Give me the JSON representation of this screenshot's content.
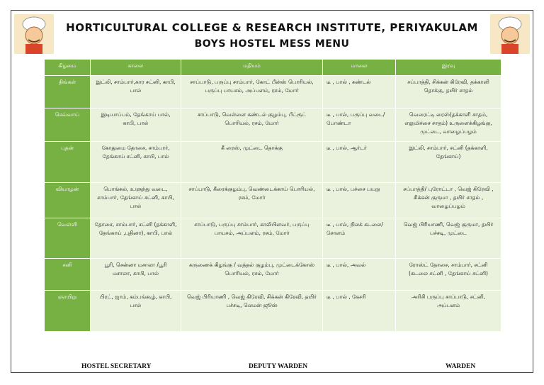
{
  "header": {
    "title": "HORTICULTURAL COLLEGE & RESEARCH INSTITUTE, PERIYAKULAM",
    "subtitle": "BOYS HOSTEL MESS MENU"
  },
  "table": {
    "columns": [
      "கிழமை",
      "காலை",
      "மதியம்",
      "மாலை",
      "இரவு"
    ],
    "rows": [
      [
        "திங்கள்",
        "இட்லி, சாம்பார்,கார சட்னி, காபி, பால்",
        "சாப்பாடு, பருப்பு சாம்பார், கோட் பீன்ஸ் பொரியல், பருப்பு பாயசம், அப்பளம், ரசம், மோர்",
        "டீ , பால் , சுண்டல்",
        "சப்பாத்தி, சிக்கன் கிரேவி, தக்காளி தொக்கு, தயிர் சாதம்"
      ],
      [
        "செவ்வாய்",
        "இடியாப்பம், தேங்காய் பால், காபி, பால்",
        "சாப்பாடு, வெள்ளை சுண்டல் குழம்பு, பீட்ரூட் பொரியல், ரசம், மோர்",
        "டீ , பால், பருப்பு வடை/போண்டா",
        "வெரைட்டி ரைஸ்(தக்காளி சாதம், எலுமிச்சை சாதம்) உருளைக்கிழங்கு, முட்டை, வாழைப்பழம்"
      ],
      [
        "புதன்",
        "கோதுமை தோசை, சாம்பார், தேங்காய் சட்னி, காபி, பால்",
        "கீ ரைஸ், முட்டை தொக்கு",
        "டீ , பால், ஆர்டர்",
        "இட்லி, சாம்பார், சட்னி (தக்காளி, தேங்காய்)"
      ],
      [
        "வியாழன்",
        "பொங்கல், உளுந்து வடை, சாம்பார், தேங்காய் சட்னி, காபி, பால்",
        "சாப்பாடு, கீரைக்குழம்பு, வெண்டைக்காய் பொரியல், ரசம், மோர்",
        "டீ , பால், பச்சை பயறு",
        "சப்பாத்தி/ புரோட்டா , வெஜ் கிரேவி , சிக்கன் குருமா , தயிர் சாதம் , வாழைப்பழம்"
      ],
      [
        "வெள்ளி",
        "தோசை, சாம்பார், சட்னி (தக்காளி, தேங்காய் ,புதினா), காபி, பால்",
        "சாப்பாடு, பருப்பு சாம்பார், காலிபிளவர், பருப்பு பாயசம், அப்பளம், ரசம், மோர்",
        "டீ , பால், நிலக் கடலை/ சோளம்",
        "வெஜ் பிரியாணி, வெஜ் குருமா, தயிர் பச்சடி, முட்டை"
      ],
      [
        "சனி",
        "பூரி, சென்னா மசாலா /பூரி மசாலா, காபி, பால்",
        "கருணைக் கிழங்கு / வத்தல் குழம்பு, முட்டைக்கோஸ் பொரியல், ரசம், மோர்",
        "டீ , பால், அவல்",
        "ரோஸ்ட் தோசை, சாம்பார், சட்னி (கடலை சட்னி , தேங்காய் சட்னி)"
      ],
      [
        "ஞாயிறு",
        "பிரட், ஜாம், கம்பங்கூழ், காபி, பால்",
        "வெஜ் பிரியாணி , வெஜ் கிரேவி, சிக்கன் கிரேவி, தயிர் பச்சடி, லெமன் ஜூஸ்",
        "டீ , பால் , கேசரி",
        "அரிசி பருப்பு சாப்பாடு, சட்னி, அப்பளம்"
      ]
    ]
  },
  "footer": {
    "signatures": [
      "HOSTEL SECRETARY",
      "DEPUTY WARDEN",
      "WARDEN"
    ]
  }
}
